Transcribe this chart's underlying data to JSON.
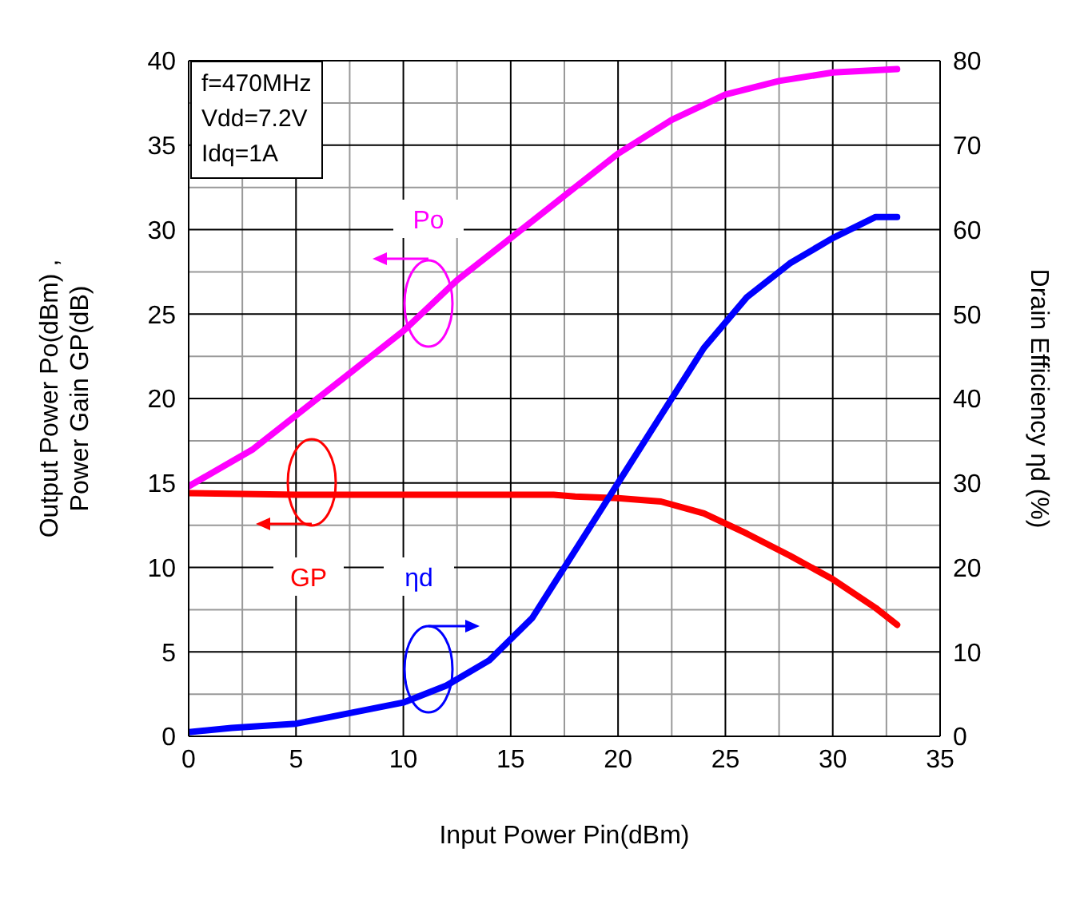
{
  "chart_data": {
    "type": "line",
    "xlabel": "Input Power  Pin(dBm)",
    "ylabel": "Output Power  Po(dBm) ,\nPower Gain GP(dB)",
    "y2label": "Drain Efficiency ηd (%)",
    "xlim": [
      0,
      35
    ],
    "xticks": [
      0,
      5,
      10,
      15,
      20,
      25,
      30,
      35
    ],
    "ylim": [
      0,
      40
    ],
    "yticks": [
      0,
      5,
      10,
      15,
      20,
      25,
      30,
      35,
      40
    ],
    "y2lim": [
      0,
      80
    ],
    "y2ticks": [
      0,
      10,
      20,
      30,
      40,
      50,
      60,
      70,
      80
    ],
    "grid": true,
    "marker": "none",
    "line_style": "solid",
    "annotations": [
      "f=470MHz",
      "Vdd=7.2V",
      "Idq=1A"
    ],
    "series": [
      {
        "name": "Po",
        "color": "#ff00ff",
        "x": [
          0,
          3,
          5,
          7.5,
          10,
          12.5,
          15,
          17.5,
          20,
          22.5,
          25,
          27.5,
          30,
          33
        ],
        "values": [
          14.8,
          17,
          19,
          21.5,
          24,
          27,
          29.5,
          32,
          34.5,
          36.5,
          38,
          38.8,
          39.3,
          39.5
        ]
      },
      {
        "name": "GP",
        "color": "#ff0000",
        "x": [
          0,
          5,
          10,
          17,
          18,
          20,
          22,
          24,
          26,
          28,
          30,
          32,
          33
        ],
        "values": [
          14.4,
          14.3,
          14.3,
          14.3,
          14.2,
          14.1,
          13.9,
          13.2,
          12,
          10.7,
          9.3,
          7.6,
          6.6
        ]
      },
      {
        "name": "ηd",
        "color": "#0000ff",
        "axis": "y2",
        "x": [
          0,
          2,
          5,
          7,
          10,
          12,
          14,
          16,
          18,
          20,
          22,
          24,
          26,
          28,
          30,
          32,
          33
        ],
        "values": [
          0.5,
          1,
          1.5,
          2.5,
          4,
          6,
          9,
          14,
          22,
          30,
          38,
          46,
          52,
          56,
          59,
          61.5,
          61.5
        ]
      }
    ]
  }
}
